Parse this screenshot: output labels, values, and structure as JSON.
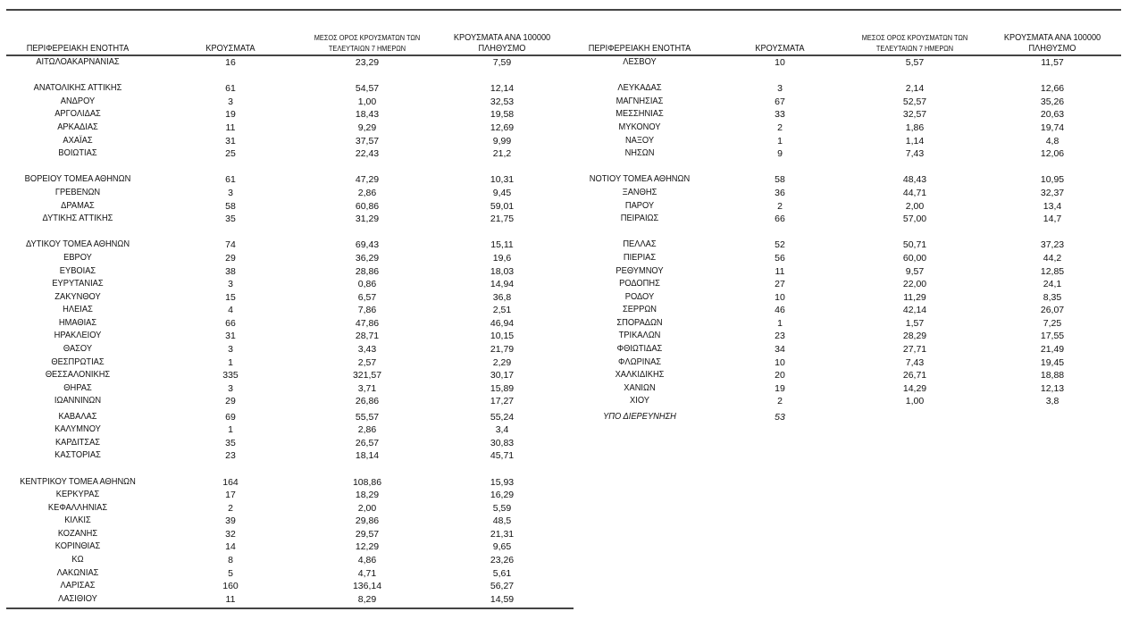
{
  "headers": {
    "region": "ΠΕΡΙΦΕΡΕΙΑΚΗ ΕΝΟΤΗΤΑ",
    "cases": "ΚΡΟΥΣΜΑΤΑ",
    "avg_line1": "ΜΕΣΟΣ ΟΡΟΣ ΚΡΟΥΣΜΑΤΩΝ ΤΩΝ",
    "avg_line2": "ΤΕΛΕΥΤΑΙΩΝ 7 ΗΜΕΡΩΝ",
    "per100k_line1": "ΚΡΟΥΣΜΑΤΑ ΑΝΑ 100000",
    "per100k_line2": "ΠΛΗΘΥΣΜΟ"
  },
  "left_table": [
    [
      "ΑΙΤΩΛΟΑΚΑΡΝΑΝΙΑΣ",
      "16",
      "23,29",
      "7,59"
    ],
    [],
    [
      "ΑΝΑΤΟΛΙΚΗΣ ΑΤΤΙΚΗΣ",
      "61",
      "54,57",
      "12,14"
    ],
    [
      "ΑΝΔΡΟΥ",
      "3",
      "1,00",
      "32,53"
    ],
    [
      "ΑΡΓΟΛΙΔΑΣ",
      "19",
      "18,43",
      "19,58"
    ],
    [
      "ΑΡΚΑΔΙΑΣ",
      "11",
      "9,29",
      "12,69"
    ],
    [
      "ΑΧΑΪΑΣ",
      "31",
      "37,57",
      "9,99"
    ],
    [
      "ΒΟΙΩΤΙΑΣ",
      "25",
      "22,43",
      "21,2"
    ],
    [],
    [
      "ΒΟΡΕΙΟΥ ΤΟΜΕΑ ΑΘΗΝΩΝ",
      "61",
      "47,29",
      "10,31"
    ],
    [
      "ΓΡΕΒΕΝΩΝ",
      "3",
      "2,86",
      "9,45"
    ],
    [
      "ΔΡΑΜΑΣ",
      "58",
      "60,86",
      "59,01"
    ],
    [
      "ΔΥΤΙΚΗΣ ΑΤΤΙΚΗΣ",
      "35",
      "31,29",
      "21,75"
    ],
    [],
    [
      "ΔΥΤΙΚΟΥ ΤΟΜΕΑ ΑΘΗΝΩΝ",
      "74",
      "69,43",
      "15,11"
    ],
    [
      "ΕΒΡΟΥ",
      "29",
      "36,29",
      "19,6"
    ],
    [
      "ΕΥΒΟΙΑΣ",
      "38",
      "28,86",
      "18,03"
    ],
    [
      "ΕΥΡΥΤΑΝΙΑΣ",
      "3",
      "0,86",
      "14,94"
    ],
    [
      "ΖΑΚΥΝΘΟΥ",
      "15",
      "6,57",
      "36,8"
    ],
    [
      "ΗΛΕΙΑΣ",
      "4",
      "7,86",
      "2,51"
    ],
    [
      "ΗΜΑΘΙΑΣ",
      "66",
      "47,86",
      "46,94"
    ],
    [
      "ΗΡΑΚΛΕΙΟΥ",
      "31",
      "28,71",
      "10,15"
    ],
    [
      "ΘΑΣΟΥ",
      "3",
      "3,43",
      "21,79"
    ],
    [
      "ΘΕΣΠΡΩΤΙΑΣ",
      "1",
      "2,57",
      "2,29"
    ],
    [
      "ΘΕΣΣΑΛΟΝΙΚΗΣ",
      "335",
      "321,57",
      "30,17"
    ],
    [
      "ΘΗΡΑΣ",
      "3",
      "3,71",
      "15,89"
    ],
    [
      "ΙΩΑΝΝΙΝΩΝ",
      "29",
      "26,86",
      "17,27"
    ],
    [
      "ΚΑΒΑΛΑΣ",
      "69",
      "55,57",
      "55,24"
    ],
    [
      "ΚΑΛΥΜΝΟΥ",
      "1",
      "2,86",
      "3,4"
    ],
    [
      "ΚΑΡΔΙΤΣΑΣ",
      "35",
      "26,57",
      "30,83"
    ],
    [
      "ΚΑΣΤΟΡΙΑΣ",
      "23",
      "18,14",
      "45,71"
    ],
    [],
    [
      "ΚΕΝΤΡΙΚΟΥ ΤΟΜΕΑ ΑΘΗΝΩΝ",
      "164",
      "108,86",
      "15,93"
    ],
    [
      "ΚΕΡΚΥΡΑΣ",
      "17",
      "18,29",
      "16,29"
    ],
    [
      "ΚΕΦΑΛΛΗΝΙΑΣ",
      "2",
      "2,00",
      "5,59"
    ],
    [
      "ΚΙΛΚΙΣ",
      "39",
      "29,86",
      "48,5"
    ],
    [
      "ΚΟΖΑΝΗΣ",
      "32",
      "29,57",
      "21,31"
    ],
    [
      "ΚΟΡΙΝΘΙΑΣ",
      "14",
      "12,29",
      "9,65"
    ],
    [
      "ΚΩ",
      "8",
      "4,86",
      "23,26"
    ],
    [
      "ΛΑΚΩΝΙΑΣ",
      "5",
      "4,71",
      "5,61"
    ],
    [
      "ΛΑΡΙΣΑΣ",
      "160",
      "136,14",
      "56,27"
    ],
    [
      "ΛΑΣΙΘΙΟΥ",
      "11",
      "8,29",
      "14,59"
    ]
  ],
  "right_table": [
    [
      "ΛΕΣΒΟΥ",
      "10",
      "5,57",
      "11,57"
    ],
    [],
    [
      "ΛΕΥΚΑΔΑΣ",
      "3",
      "2,14",
      "12,66"
    ],
    [
      "ΜΑΓΝΗΣΙΑΣ",
      "67",
      "52,57",
      "35,26"
    ],
    [
      "ΜΕΣΣΗΝΙΑΣ",
      "33",
      "32,57",
      "20,63"
    ],
    [
      "ΜΥΚΟΝΟΥ",
      "2",
      "1,86",
      "19,74"
    ],
    [
      "ΝΑΞΟΥ",
      "1",
      "1,14",
      "4,8"
    ],
    [
      "ΝΗΣΩΝ",
      "9",
      "7,43",
      "12,06"
    ],
    [],
    [
      "ΝΟΤΙΟΥ ΤΟΜΕΑ ΑΘΗΝΩΝ",
      "58",
      "48,43",
      "10,95"
    ],
    [
      "ΞΑΝΘΗΣ",
      "36",
      "44,71",
      "32,37"
    ],
    [
      "ΠΑΡΟΥ",
      "2",
      "2,00",
      "13,4"
    ],
    [
      "ΠΕΙΡΑΙΩΣ",
      "66",
      "57,00",
      "14,7"
    ],
    [],
    [
      "ΠΕΛΛΑΣ",
      "52",
      "50,71",
      "37,23"
    ],
    [
      "ΠΙΕΡΙΑΣ",
      "56",
      "60,00",
      "44,2"
    ],
    [
      "ΡΕΘΥΜΝΟΥ",
      "11",
      "9,57",
      "12,85"
    ],
    [
      "ΡΟΔΟΠΗΣ",
      "27",
      "22,00",
      "24,1"
    ],
    [
      "ΡΟΔΟΥ",
      "10",
      "11,29",
      "8,35"
    ],
    [
      "ΣΕΡΡΩΝ",
      "46",
      "42,14",
      "26,07"
    ],
    [
      "ΣΠΟΡΑΔΩΝ",
      "1",
      "1,57",
      "7,25"
    ],
    [
      "ΤΡΙΚΑΛΩΝ",
      "23",
      "28,29",
      "17,55"
    ],
    [
      "ΦΘΙΩΤΙΔΑΣ",
      "34",
      "27,71",
      "21,49"
    ],
    [
      "ΦΛΩΡΙΝΑΣ",
      "10",
      "7,43",
      "19,45"
    ],
    [
      "ΧΑΛΚΙΔΙΚΗΣ",
      "20",
      "26,71",
      "18,88"
    ],
    [
      "ΧΑΝΙΩΝ",
      "19",
      "14,29",
      "12,13"
    ],
    [
      "ΧΙΟΥ",
      "2",
      "1,00",
      "3,8"
    ],
    [
      "ΥΠΟ ΔΙΕΡΕΥΝΗΣΗ",
      "53"
    ]
  ]
}
